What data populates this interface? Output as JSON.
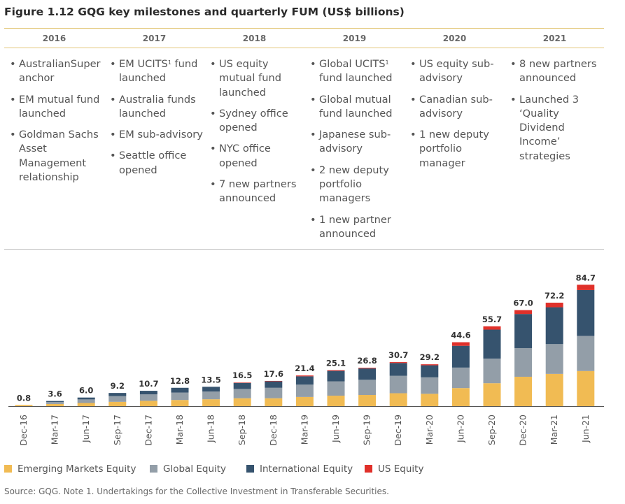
{
  "figure": {
    "title": "Figure 1.12  GQG key milestones and quarterly FUM (US$ billions)",
    "source": "Source: GQG. Note 1. Undertakings for the Collective Investment in Transferable Securities."
  },
  "timeline": [
    {
      "year": "2016",
      "items": [
        {
          "text": "AustralianSuper anchor"
        },
        {
          "text": "EM mutual fund launched"
        },
        {
          "text": "Goldman Sachs Asset Management relationship"
        }
      ]
    },
    {
      "year": "2017",
      "items": [
        {
          "text": "EM UCITS",
          "sup": "1",
          "rest": " fund launched"
        },
        {
          "text": "Australia funds launched"
        },
        {
          "text": "EM sub-advisory"
        },
        {
          "text": "Seattle office opened"
        }
      ]
    },
    {
      "year": "2018",
      "items": [
        {
          "text": "US equity mutual fund launched"
        },
        {
          "text": "Sydney office opened"
        },
        {
          "text": "NYC office opened"
        },
        {
          "text": "7 new partners announced"
        }
      ]
    },
    {
      "year": "2019",
      "items": [
        {
          "text": "Global UCITS",
          "sup": "1",
          "rest": " fund launched"
        },
        {
          "text": "Global mutual fund launched"
        },
        {
          "text": "Japanese sub-advisory"
        },
        {
          "text": "2 new deputy portfolio managers"
        },
        {
          "text": "1 new partner announced"
        }
      ]
    },
    {
      "year": "2020",
      "items": [
        {
          "text": "US equity sub-advisory"
        },
        {
          "text": "Canadian sub-advisory"
        },
        {
          "text": "1 new deputy portfolio manager"
        }
      ]
    },
    {
      "year": "2021",
      "items": [
        {
          "text": "8 new partners announced"
        },
        {
          "text": "Launched 3 ‘Quality Dividend Income’ strategies"
        }
      ]
    }
  ],
  "chart_data": {
    "type": "bar",
    "stacked": true,
    "title": "",
    "xlabel": "",
    "ylabel": "",
    "ylim": [
      0,
      90
    ],
    "categories": [
      "Dec-16",
      "Mar-17",
      "Jun-17",
      "Sep-17",
      "Dec-17",
      "Mar-18",
      "Jun-18",
      "Sep-18",
      "Dec-18",
      "Mar-19",
      "Jun-19",
      "Sep-19",
      "Dec-19",
      "Mar-20",
      "Jun-20",
      "Sep-20",
      "Dec-20",
      "Mar-21",
      "Jun-21"
    ],
    "totals": [
      "0.8",
      "3.6",
      "6.0",
      "9.2",
      "10.7",
      "12.8",
      "13.5",
      "16.5",
      "17.6",
      "21.4",
      "25.1",
      "26.8",
      "30.7",
      "29.2",
      "44.6",
      "55.7",
      "67.0",
      "72.2",
      "84.7"
    ],
    "series": [
      {
        "name": "Emerging Markets Equity",
        "color": "#f1bb53",
        "values": [
          0.8,
          1.5,
          2.2,
          3.0,
          3.7,
          4.3,
          4.8,
          5.5,
          5.5,
          6.4,
          7.3,
          7.8,
          9.0,
          8.6,
          12.6,
          16.0,
          20.5,
          22.5,
          24.5
        ]
      },
      {
        "name": "Global Equity",
        "color": "#939ea8",
        "values": [
          0,
          1.4,
          2.5,
          4.0,
          4.5,
          5.2,
          5.4,
          6.5,
          7.3,
          8.6,
          10.0,
          10.6,
          12.2,
          11.5,
          14.3,
          17.2,
          20.0,
          20.8,
          24.5
        ]
      },
      {
        "name": "International Equity",
        "color": "#36536e",
        "values": [
          0,
          0.7,
          1.3,
          2.2,
          2.5,
          3.3,
          3.3,
          4.2,
          4.5,
          5.8,
          7.3,
          7.9,
          8.9,
          8.4,
          15.2,
          20.2,
          23.8,
          25.7,
          32.0
        ]
      },
      {
        "name": "US Equity",
        "color": "#e0302a",
        "values": [
          0,
          0,
          0,
          0,
          0,
          0,
          0,
          0.3,
          0.3,
          0.6,
          0.5,
          0.5,
          0.6,
          0.7,
          2.5,
          2.3,
          2.7,
          3.2,
          3.7
        ]
      }
    ],
    "grid": false,
    "legend_position": "bottom-left"
  }
}
